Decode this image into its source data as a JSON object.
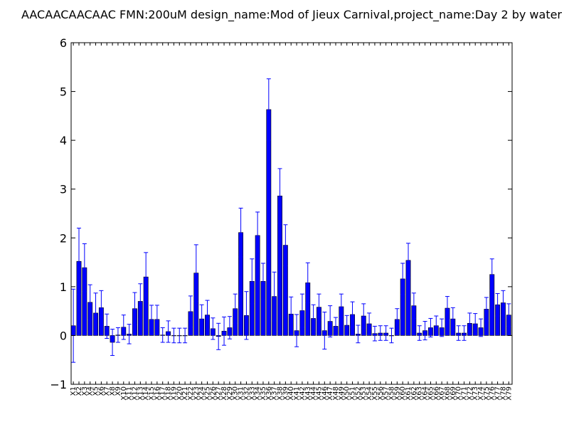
{
  "chart_data": {
    "type": "bar",
    "title": "AACAACAACAAC  FMN:200uM  design_name:Mod of Jieux Carnival,project_name:Day 2 by water",
    "xlabel": "",
    "ylabel": "",
    "ylim": [
      -1,
      6
    ],
    "yticks": [
      -1,
      0,
      1,
      2,
      3,
      4,
      5,
      6
    ],
    "ytick_labels": [
      "−1",
      "0",
      "1",
      "2",
      "3",
      "4",
      "5",
      "6"
    ],
    "grid": false,
    "bar_color": "#0000ff",
    "error_color": "#0000ff",
    "categories": [
      "X1",
      "X2",
      "X3",
      "X4",
      "X5",
      "X6",
      "X7",
      "X8",
      "X9",
      "X10",
      "X11",
      "X12",
      "X13",
      "X14",
      "X15",
      "X16",
      "X17",
      "X18",
      "X19",
      "X20",
      "X21",
      "X22",
      "X23",
      "X24",
      "X25",
      "X26",
      "X27",
      "X28",
      "X29",
      "X30",
      "X31",
      "X32",
      "X33",
      "X34",
      "X35",
      "X36",
      "X37",
      "X38",
      "X39",
      "X40",
      "X41",
      "X42",
      "X43",
      "X44",
      "X45",
      "X46",
      "X47",
      "X48",
      "X49",
      "X50",
      "X51",
      "X52",
      "X53",
      "X54",
      "X55",
      "X56",
      "X57",
      "X58",
      "X59",
      "X60",
      "X61",
      "X62",
      "X63",
      "X64",
      "X65",
      "X66",
      "X67",
      "X68",
      "X69",
      "X70",
      "X71",
      "X72",
      "X73",
      "X74",
      "X75",
      "X76",
      "X77",
      "X78",
      "X79"
    ],
    "values": [
      0.2,
      1.52,
      1.39,
      0.68,
      0.46,
      0.57,
      0.19,
      -0.14,
      0.01,
      0.17,
      0.03,
      0.55,
      0.7,
      1.2,
      0.33,
      0.33,
      0.01,
      0.08,
      0.0,
      0.0,
      0.0,
      0.49,
      1.28,
      0.34,
      0.42,
      0.14,
      -0.02,
      0.09,
      0.16,
      0.55,
      2.11,
      0.41,
      1.11,
      2.05,
      1.11,
      4.63,
      0.8,
      2.86,
      1.85,
      0.44,
      0.1,
      0.51,
      1.08,
      0.35,
      0.58,
      0.1,
      0.29,
      0.19,
      0.59,
      0.21,
      0.43,
      0.03,
      0.4,
      0.24,
      0.04,
      0.05,
      0.05,
      0.0,
      0.33,
      1.16,
      1.54,
      0.61,
      0.05,
      0.1,
      0.16,
      0.2,
      0.16,
      0.56,
      0.34,
      0.05,
      0.05,
      0.25,
      0.24,
      0.16,
      0.54,
      1.25,
      0.63,
      0.67,
      0.42
    ],
    "errors": [
      0.75,
      0.68,
      0.49,
      0.36,
      0.41,
      0.35,
      0.25,
      0.27,
      0.15,
      0.25,
      0.2,
      0.33,
      0.36,
      0.5,
      0.29,
      0.29,
      0.15,
      0.22,
      0.15,
      0.15,
      0.15,
      0.32,
      0.58,
      0.29,
      0.3,
      0.22,
      0.27,
      0.29,
      0.23,
      0.3,
      0.5,
      0.49,
      0.46,
      0.48,
      0.37,
      0.63,
      0.5,
      0.56,
      0.42,
      0.35,
      0.33,
      0.34,
      0.41,
      0.28,
      0.27,
      0.38,
      0.32,
      0.18,
      0.26,
      0.2,
      0.26,
      0.18,
      0.25,
      0.22,
      0.15,
      0.15,
      0.15,
      0.15,
      0.22,
      0.32,
      0.35,
      0.26,
      0.15,
      0.19,
      0.19,
      0.2,
      0.18,
      0.24,
      0.23,
      0.15,
      0.15,
      0.21,
      0.21,
      0.18,
      0.24,
      0.32,
      0.23,
      0.25,
      0.23
    ]
  }
}
